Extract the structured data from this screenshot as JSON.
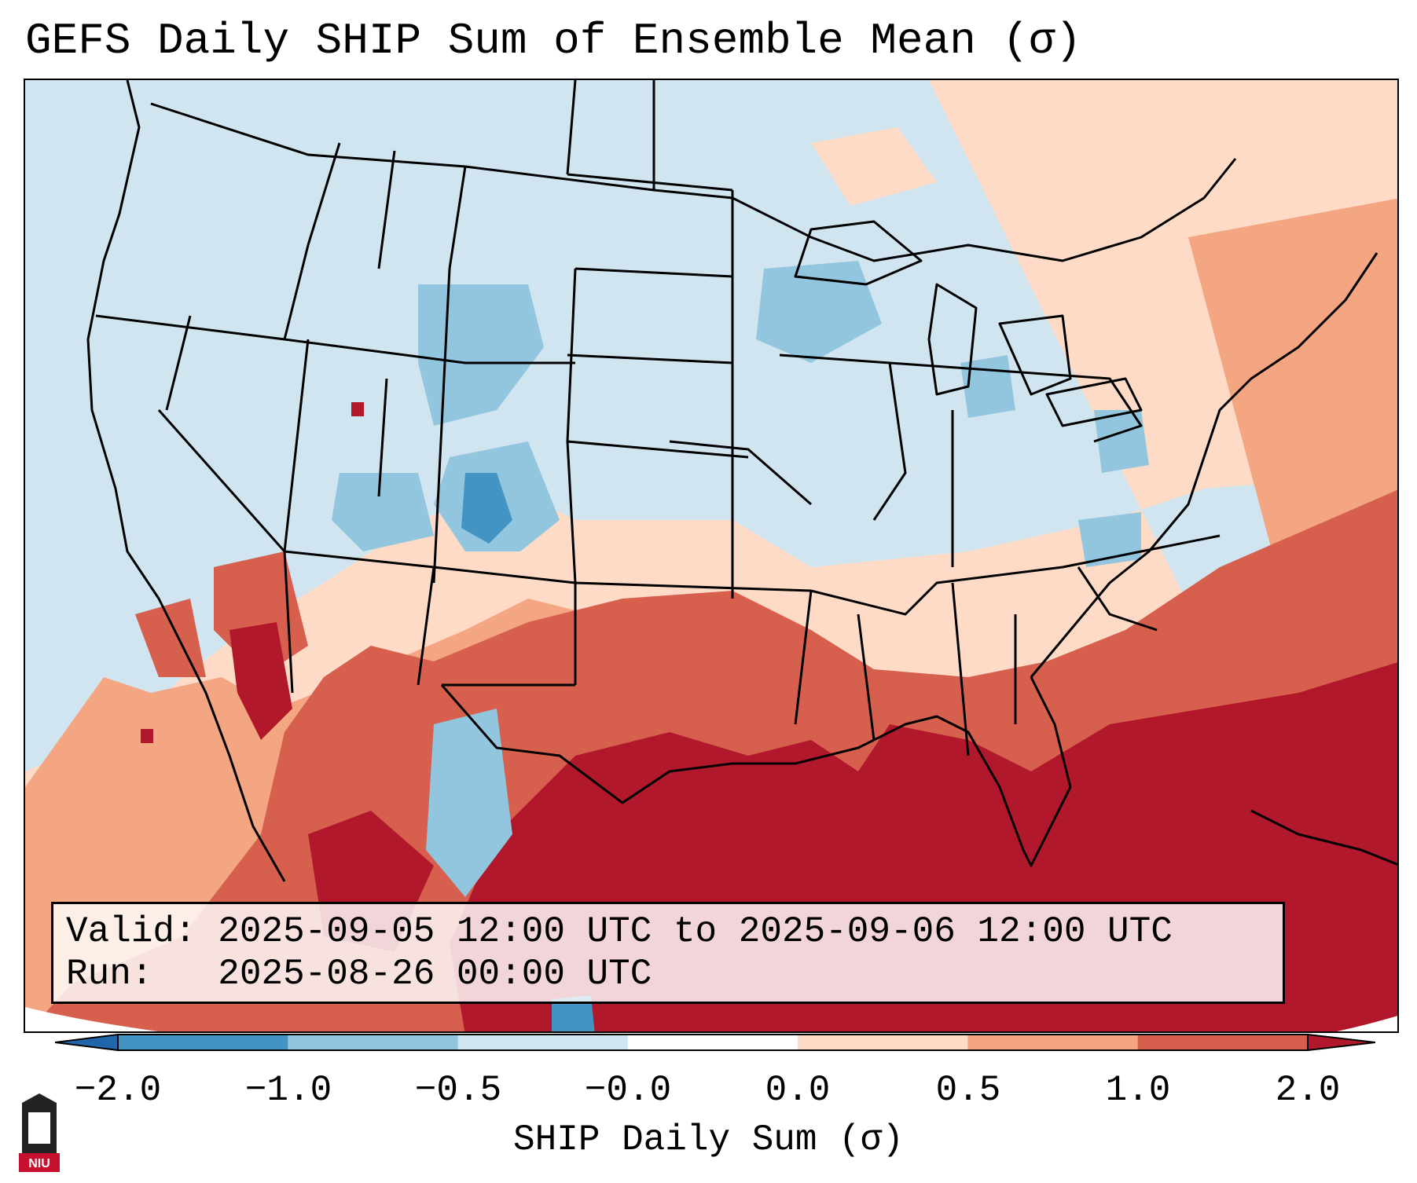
{
  "title": "GEFS Daily SHIP Sum of Ensemble Mean (σ)",
  "info": {
    "valid_label": "Valid:",
    "valid_value": "2025-09-05 12:00 UTC to 2025-09-06 12:00 UTC",
    "run_label": "Run:",
    "run_value": "2025-08-26 00:00 UTC"
  },
  "colorbar": {
    "label": "SHIP Daily Sum (σ)",
    "ticks": [
      "−2.0",
      "−1.0",
      "−0.5",
      "−0.0",
      "0.0",
      "0.5",
      "1.0",
      "2.0"
    ],
    "bins": [
      {
        "range": "< -2.0",
        "color": "#2166ac"
      },
      {
        "range": "-2.0 to -1.0",
        "color": "#4393c3"
      },
      {
        "range": "-1.0 to -0.5",
        "color": "#92c5de"
      },
      {
        "range": "-0.5 to -0.0",
        "color": "#d1e5f0"
      },
      {
        "range": "-0.0 to 0.0",
        "color": "#ffffff"
      },
      {
        "range": "0.0 to 0.5",
        "color": "#fddbc7"
      },
      {
        "range": "0.5 to 1.0",
        "color": "#f4a582"
      },
      {
        "range": "1.0 to 2.0",
        "color": "#d6604d"
      },
      {
        "range": "> 2.0",
        "color": "#b2182b"
      }
    ]
  },
  "logo": {
    "text": "NIU",
    "color": "#c8102e"
  }
}
